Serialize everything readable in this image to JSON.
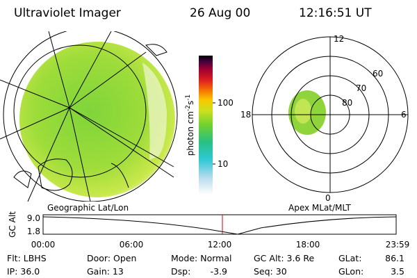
{
  "header": {
    "title": "Ultraviolet Imager",
    "date": "26 Aug 00",
    "time": "12:16:51 UT"
  },
  "colorbar": {
    "ticks": [
      "100",
      "10"
    ],
    "label": {
      "unit1": "photon cm",
      "exp1": "-2",
      "unit2": "s",
      "exp2": "-1"
    }
  },
  "left_panel": {
    "label": "Geographic Lat/Lon"
  },
  "right_panel": {
    "label": "Apex MLat/MLT",
    "mlt_labels": [
      "12",
      "18",
      "6",
      "0"
    ],
    "mlat_labels": [
      "60",
      "70",
      "80"
    ]
  },
  "timeline": {
    "y_label": "GC Alt",
    "y_ticks": [
      "9.0",
      "1.8"
    ],
    "x_ticks": [
      "00:00",
      "06:00",
      "12:00",
      "18:00",
      "23:59"
    ]
  },
  "footer": {
    "rows": [
      [
        "Flt: LBHS",
        "Door: Open",
        "Mode: Normal",
        "GC Alt: 3.6 Re",
        "GLat:",
        "86.1"
      ],
      [
        "IP: 36.0",
        "Gain: 13",
        "Dsp:",
        "-3.9",
        "Seq: 30",
        "GLon:",
        "3.5"
      ]
    ]
  }
}
